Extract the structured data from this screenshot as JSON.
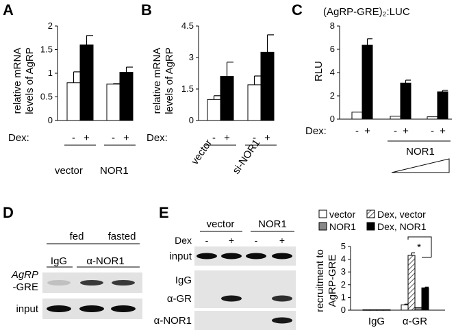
{
  "chart_data": [
    {
      "panel": "A",
      "type": "bar",
      "title": "",
      "ylabel": "relative mRNA levels of AgRP",
      "ylim": [
        0,
        2
      ],
      "yticks": [
        "0",
        "0.5",
        "1",
        "1.5",
        "2"
      ],
      "dex_label": "Dex:",
      "dex_signs": [
        "-",
        "+",
        "-",
        "+"
      ],
      "groups": [
        "vector",
        "NOR1"
      ],
      "series": [
        {
          "name": "Dex -",
          "fill": "#ffffff",
          "values": [
            0.8,
            0.77
          ],
          "errors": [
            0.23,
            0.01
          ]
        },
        {
          "name": "Dex +",
          "fill": "#000000",
          "values": [
            1.6,
            1.02
          ],
          "errors": [
            0.2,
            0.11
          ]
        }
      ]
    },
    {
      "panel": "B",
      "type": "bar",
      "title": "",
      "ylabel": "relative mRNA levels of AgRP",
      "ylim": [
        0,
        4.5
      ],
      "yticks": [
        "0",
        "1.5",
        "3",
        "4.5"
      ],
      "dex_label": "Dex:",
      "dex_signs": [
        "-",
        "+",
        "-",
        "+"
      ],
      "groups": [
        "vector",
        "si-NOR1"
      ],
      "series": [
        {
          "name": "Dex -",
          "fill": "#ffffff",
          "values": [
            1.0,
            1.7
          ],
          "errors": [
            0.18,
            0.42
          ]
        },
        {
          "name": "Dex +",
          "fill": "#000000",
          "values": [
            2.1,
            3.25
          ],
          "errors": [
            0.68,
            0.83
          ]
        }
      ]
    },
    {
      "panel": "C",
      "type": "bar",
      "title": "(AgRP-GRE)₂:LUC",
      "ylabel": "RLU",
      "ylim": [
        0,
        8
      ],
      "yticks": [
        "0",
        "2",
        "4",
        "6",
        "8"
      ],
      "dex_label": "Dex:",
      "dex_signs": [
        "-",
        "+",
        "-",
        "+",
        "-",
        "+"
      ],
      "bracket_label": "NOR1",
      "series": [
        {
          "name": "Dex -",
          "fill": "#ffffff",
          "values": [
            0.6,
            0.25,
            0.2
          ],
          "errors": [
            0.0,
            0.0,
            0.0
          ]
        },
        {
          "name": "Dex +",
          "fill": "#000000",
          "values": [
            6.35,
            3.1,
            2.35
          ],
          "errors": [
            0.55,
            0.25,
            0.12
          ]
        }
      ]
    },
    {
      "panel": "E",
      "type": "bar",
      "title": "",
      "ylabel": "recruitment to AgRP-GRE",
      "ylim": [
        0,
        5
      ],
      "yticks": [
        "0",
        "1",
        "2",
        "3",
        "4",
        "5"
      ],
      "categories": [
        "IgG",
        "α-GR"
      ],
      "legend_position": "top",
      "significance": "*",
      "series": [
        {
          "name": "vector",
          "fill": "#ffffff",
          "values": [
            0.03,
            0.42
          ],
          "errors": [
            0.0,
            0.05
          ]
        },
        {
          "name": "Dex, vector",
          "fill": "hatch",
          "values": [
            0.03,
            4.3
          ],
          "errors": [
            0.0,
            0.2
          ]
        },
        {
          "name": "NOR1",
          "fill": "#888888",
          "values": [
            0.03,
            0.2
          ],
          "errors": [
            0.0,
            0.0
          ]
        },
        {
          "name": "Dex, NOR1",
          "fill": "#000000",
          "values": [
            0.03,
            1.75
          ],
          "errors": [
            0.0,
            0.06
          ]
        }
      ]
    }
  ],
  "panel_labels": [
    "A",
    "B",
    "C",
    "D",
    "E"
  ],
  "panel_d": {
    "header_top": "fed",
    "header_top2": "fasted",
    "lanes": [
      "IgG",
      "α-NOR1"
    ],
    "row1_line1": "AgRP",
    "row1_line2": "-GRE",
    "row2": "input",
    "band_intensity_row1": [
      0.15,
      0.75,
      0.75
    ],
    "band_intensity_row2": [
      0.95,
      0.95,
      0.95
    ]
  },
  "panel_e_gel": {
    "header_vector": "vector",
    "header_nor1": "NOR1",
    "dex_label": "Dex",
    "dex_signs": [
      "-",
      "+",
      "-",
      "+"
    ],
    "rows": [
      "input",
      "IgG",
      "α-GR",
      "α-NOR1"
    ],
    "band_intensity": [
      [
        0.95,
        0.95,
        0.95,
        0.95
      ],
      [
        0.0,
        0.0,
        0.0,
        0.0
      ],
      [
        0.0,
        0.9,
        0.0,
        0.8
      ],
      [
        0.0,
        0.0,
        0.0,
        0.9
      ]
    ]
  }
}
